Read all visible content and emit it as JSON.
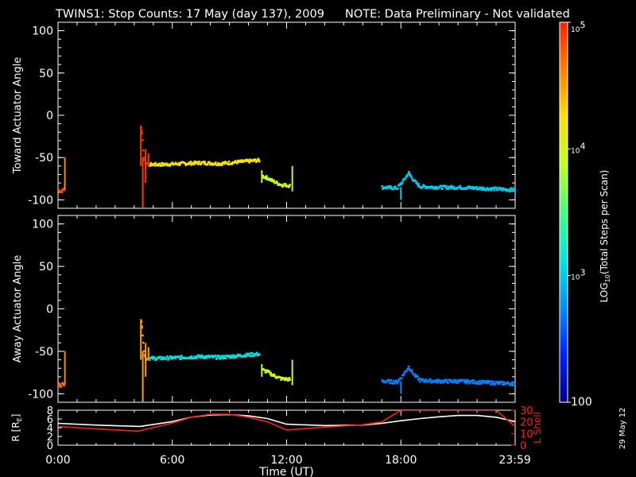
{
  "title": {
    "main": "TWINS1: Stop Counts: 17 May (day 137), 2009",
    "note": "NOTE: Data Preliminary - Not validated",
    "note_color": "#ff2020"
  },
  "side_date": "29 May 12",
  "colorbar": {
    "label": "LOG10(Total Steps per Scan)",
    "label_main": "LOG",
    "label_sub": "10",
    "label_rest": "(Total Steps per Scan)",
    "scale": "log",
    "min": 100,
    "max": 100000,
    "tick_labels": [
      {
        "value": 100,
        "text": "100"
      },
      {
        "value": 1000,
        "text": "10",
        "sup": "3"
      },
      {
        "value": 10000,
        "text": "10",
        "sup": "4"
      },
      {
        "value": 100000,
        "text": "10",
        "sup": "5"
      }
    ],
    "colormap": [
      "#000090",
      "#0020ff",
      "#0090ff",
      "#00e8e0",
      "#40ff80",
      "#c0ff20",
      "#ffe000",
      "#ff8000",
      "#ff2000"
    ]
  },
  "chart_data": [
    {
      "type": "scatter",
      "ylabel": "Toward Actuator Angle",
      "ylim": [
        -110,
        110
      ],
      "yticks": [
        100,
        50,
        0,
        -50,
        -100
      ],
      "xlim": [
        0,
        24
      ],
      "grid": false,
      "segments": [
        {
          "x0": 0.0,
          "x1": 0.35,
          "points": [
            [
              0.0,
              -88
            ],
            [
              0.1,
              -90
            ],
            [
              0.2,
              -89
            ],
            [
              0.3,
              -88
            ],
            [
              0.35,
              -86
            ]
          ],
          "log_counts": 4.85
        },
        {
          "x0": 0.36,
          "x1": 0.4,
          "vertical": [
            -88,
            -50
          ],
          "log_counts": 4.6
        },
        {
          "x0": 4.3,
          "x1": 4.7,
          "points": [
            [
              4.35,
              -15
            ],
            [
              4.4,
              -20
            ],
            [
              4.5,
              -50
            ],
            [
              4.6,
              -58
            ],
            [
              4.7,
              -59
            ]
          ],
          "log_counts": 4.9
        },
        {
          "x0": 4.7,
          "x1": 10.7,
          "points": [
            [
              4.8,
              -58
            ],
            [
              5.5,
              -58
            ],
            [
              6.5,
              -57
            ],
            [
              7.5,
              -56
            ],
            [
              8.5,
              -57
            ],
            [
              9.5,
              -55
            ],
            [
              10.0,
              -54
            ],
            [
              10.6,
              -53
            ]
          ],
          "log_counts": 4.2
        },
        {
          "x0": 10.7,
          "x1": 12.3,
          "points": [
            [
              10.75,
              -72
            ],
            [
              11.0,
              -74
            ],
            [
              11.3,
              -78
            ],
            [
              11.7,
              -82
            ],
            [
              12.2,
              -83
            ]
          ],
          "log_counts": 3.9
        },
        {
          "x0": 17.0,
          "x1": 24.0,
          "points": [
            [
              17.0,
              -85
            ],
            [
              17.8,
              -86
            ],
            [
              18.1,
              -78
            ],
            [
              18.4,
              -68
            ],
            [
              18.7,
              -78
            ],
            [
              19.0,
              -84
            ],
            [
              20.0,
              -85
            ],
            [
              21.0,
              -85
            ],
            [
              22.0,
              -86
            ],
            [
              23.0,
              -87
            ],
            [
              24.0,
              -88
            ]
          ],
          "log_counts": 3.0
        }
      ]
    },
    {
      "type": "scatter",
      "ylabel": "Away Actuator Angle",
      "ylim": [
        -110,
        110
      ],
      "yticks": [
        100,
        50,
        0,
        -50,
        -100
      ],
      "xlim": [
        0,
        24
      ],
      "grid": false,
      "segments": [
        {
          "x0": 0.0,
          "x1": 0.35,
          "points": [
            [
              0.0,
              -88
            ],
            [
              0.1,
              -90
            ],
            [
              0.2,
              -89
            ],
            [
              0.3,
              -88
            ],
            [
              0.35,
              -86
            ]
          ],
          "log_counts": 4.7
        },
        {
          "x0": 0.36,
          "x1": 0.4,
          "vertical": [
            -88,
            -50
          ],
          "log_counts": 4.6
        },
        {
          "x0": 4.3,
          "x1": 4.7,
          "points": [
            [
              4.35,
              -15
            ],
            [
              4.4,
              -20
            ],
            [
              4.5,
              -50
            ],
            [
              4.6,
              -58
            ],
            [
              4.7,
              -59
            ]
          ],
          "log_counts": 4.5
        },
        {
          "x0": 4.7,
          "x1": 10.7,
          "points": [
            [
              4.8,
              -58
            ],
            [
              5.5,
              -58
            ],
            [
              6.5,
              -57
            ],
            [
              7.5,
              -56
            ],
            [
              8.5,
              -57
            ],
            [
              9.5,
              -55
            ],
            [
              10.0,
              -54
            ],
            [
              10.6,
              -53
            ]
          ],
          "log_counts": 3.1
        },
        {
          "x0": 10.7,
          "x1": 12.3,
          "points": [
            [
              10.75,
              -72
            ],
            [
              11.0,
              -74
            ],
            [
              11.3,
              -78
            ],
            [
              11.7,
              -82
            ],
            [
              12.2,
              -83
            ]
          ],
          "log_counts": 3.9
        },
        {
          "x0": 17.0,
          "x1": 24.0,
          "points": [
            [
              17.0,
              -85
            ],
            [
              17.8,
              -86
            ],
            [
              18.1,
              -78
            ],
            [
              18.4,
              -68
            ],
            [
              18.7,
              -78
            ],
            [
              19.0,
              -84
            ],
            [
              20.0,
              -85
            ],
            [
              21.0,
              -85
            ],
            [
              22.0,
              -86
            ],
            [
              23.0,
              -87
            ],
            [
              24.0,
              -88
            ]
          ],
          "log_counts": 2.7
        }
      ]
    },
    {
      "type": "line",
      "ylabel_left": "R [RE]",
      "ylabel_left_main": "R [R",
      "ylabel_left_sub": "E",
      "ylabel_left_end": "]",
      "ylabel_right": "L Shell",
      "xlabel": "Time (UT)",
      "xlim": [
        0,
        24
      ],
      "x_tick_labels": [
        {
          "x": 0,
          "text": "0:00"
        },
        {
          "x": 6,
          "text": "6:00"
        },
        {
          "x": 12,
          "text": "12:00"
        },
        {
          "x": 18,
          "text": "18:00"
        },
        {
          "x": 23.983,
          "text": "23:59"
        }
      ],
      "ylim_left": [
        0,
        8
      ],
      "yticks_left": [
        0,
        2,
        4,
        6,
        8
      ],
      "ylim_right": [
        0,
        30
      ],
      "yticks_right": [
        0,
        10,
        20,
        30
      ],
      "series": [
        {
          "axis": "left",
          "color": "#ffffff",
          "x": [
            0,
            2,
            4.3,
            6,
            7,
            8,
            9,
            10,
            11,
            12,
            14,
            16,
            17,
            18,
            19,
            20,
            21,
            22,
            23,
            24
          ],
          "y": [
            5.0,
            4.6,
            4.3,
            5.4,
            6.4,
            6.9,
            7.0,
            6.7,
            6.1,
            4.8,
            4.5,
            4.6,
            5.0,
            5.6,
            6.1,
            6.5,
            6.8,
            6.8,
            6.4,
            5.4
          ]
        },
        {
          "axis": "right",
          "color": "#ff2010",
          "x": [
            0,
            2,
            4.2,
            6,
            7,
            8,
            9,
            10,
            11,
            12,
            14,
            16,
            17,
            18,
            19,
            20,
            21,
            22,
            23,
            24
          ],
          "y": [
            16,
            14,
            12,
            19,
            24,
            26.5,
            26.5,
            24,
            20,
            13,
            15.5,
            17.5,
            20,
            30,
            30,
            30,
            30,
            30,
            30,
            16
          ]
        }
      ]
    }
  ]
}
